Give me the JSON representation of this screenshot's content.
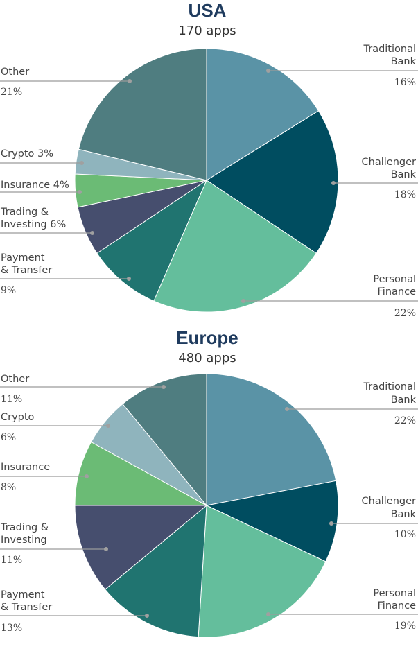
{
  "chart_data": [
    {
      "type": "pie",
      "title": "USA",
      "subtitle": "170 apps",
      "slices": [
        {
          "label": [
            "Traditional",
            "Bank"
          ],
          "value": 16,
          "pct_label": "16%",
          "color": "#5a93a6"
        },
        {
          "label": [
            "Challenger",
            "Bank"
          ],
          "value": 18,
          "pct_label": "18%",
          "color": "#004d60"
        },
        {
          "label": [
            "Personal",
            "Finance"
          ],
          "value": 22,
          "pct_label": "22%",
          "color": "#64be9c"
        },
        {
          "label": [
            "Payment",
            "& Transfer"
          ],
          "value": 9,
          "pct_label": "9%",
          "color": "#207470"
        },
        {
          "label": [
            "Trading &",
            "Investing 6%"
          ],
          "value": 6,
          "pct_label": "",
          "color": "#464e6e"
        },
        {
          "label": [
            "Insurance 4%"
          ],
          "value": 4,
          "pct_label": "",
          "color": "#6bbb75"
        },
        {
          "label": [
            "Crypto 3%"
          ],
          "value": 3,
          "pct_label": "",
          "color": "#8fb4bd"
        },
        {
          "label": [
            "Other"
          ],
          "value": 21,
          "pct_label": "21%",
          "color": "#4f7d80"
        }
      ]
    },
    {
      "type": "pie",
      "title": "Europe",
      "subtitle": "480 apps",
      "slices": [
        {
          "label": [
            "Traditional",
            "Bank"
          ],
          "value": 22,
          "pct_label": "22%",
          "color": "#5a93a6"
        },
        {
          "label": [
            "Challenger",
            "Bank"
          ],
          "value": 10,
          "pct_label": "10%",
          "color": "#004d60"
        },
        {
          "label": [
            "Personal",
            "Finance"
          ],
          "value": 19,
          "pct_label": "19%",
          "color": "#64be9c"
        },
        {
          "label": [
            "Payment",
            "& Transfer"
          ],
          "value": 13,
          "pct_label": "13%",
          "color": "#207470"
        },
        {
          "label": [
            "Trading &",
            "Investing"
          ],
          "value": 11,
          "pct_label": "11%",
          "color": "#464e6e"
        },
        {
          "label": [
            "Insurance"
          ],
          "value": 8,
          "pct_label": "8%",
          "color": "#6bbb75"
        },
        {
          "label": [
            "Crypto"
          ],
          "value": 6,
          "pct_label": "6%",
          "color": "#8fb4bd"
        },
        {
          "label": [
            "Other"
          ],
          "value": 11,
          "pct_label": "11%",
          "color": "#4f7d80"
        }
      ]
    }
  ]
}
